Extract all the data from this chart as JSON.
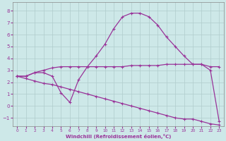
{
  "xlabel": "Windchill (Refroidissement éolien,°C)",
  "background_color": "#cde8e8",
  "grid_color": "#b0cccc",
  "line_color": "#993399",
  "xlim": [
    -0.5,
    23.5
  ],
  "ylim": [
    -1.7,
    8.7
  ],
  "xticks": [
    0,
    1,
    2,
    3,
    4,
    5,
    6,
    7,
    8,
    9,
    10,
    11,
    12,
    13,
    14,
    15,
    16,
    17,
    18,
    19,
    20,
    21,
    22,
    23
  ],
  "yticks": [
    -1,
    0,
    1,
    2,
    3,
    4,
    5,
    6,
    7,
    8
  ],
  "series1_x": [
    0,
    1,
    2,
    3,
    4,
    5,
    6,
    7,
    8,
    9,
    10,
    11,
    12,
    13,
    14,
    15,
    16,
    17,
    18,
    19,
    20,
    21,
    22,
    23
  ],
  "series1_y": [
    2.5,
    2.5,
    2.8,
    3.0,
    3.2,
    3.3,
    3.3,
    3.3,
    3.3,
    3.3,
    3.3,
    3.3,
    3.3,
    3.4,
    3.4,
    3.4,
    3.4,
    3.5,
    3.5,
    3.5,
    3.5,
    3.5,
    3.3,
    3.3
  ],
  "series2_x": [
    0,
    1,
    2,
    3,
    4,
    5,
    6,
    7,
    8,
    9,
    10,
    11,
    12,
    13,
    14,
    15,
    16,
    17,
    18,
    19,
    20,
    21,
    22,
    23
  ],
  "series2_y": [
    2.5,
    2.5,
    2.8,
    2.8,
    2.5,
    1.1,
    0.3,
    2.2,
    3.3,
    4.2,
    5.2,
    6.5,
    7.5,
    7.8,
    7.8,
    7.5,
    6.8,
    5.8,
    5.0,
    4.2,
    3.5,
    3.5,
    3.0,
    -1.3
  ],
  "series3_x": [
    0,
    1,
    2,
    3,
    4,
    5,
    6,
    7,
    8,
    9,
    10,
    11,
    12,
    13,
    14,
    15,
    16,
    17,
    18,
    19,
    20,
    21,
    22,
    23
  ],
  "series3_y": [
    2.5,
    2.3,
    2.1,
    1.9,
    1.8,
    1.6,
    1.4,
    1.2,
    1.0,
    0.8,
    0.6,
    0.4,
    0.2,
    0.0,
    -0.2,
    -0.4,
    -0.6,
    -0.8,
    -1.0,
    -1.1,
    -1.1,
    -1.3,
    -1.5,
    -1.6
  ]
}
